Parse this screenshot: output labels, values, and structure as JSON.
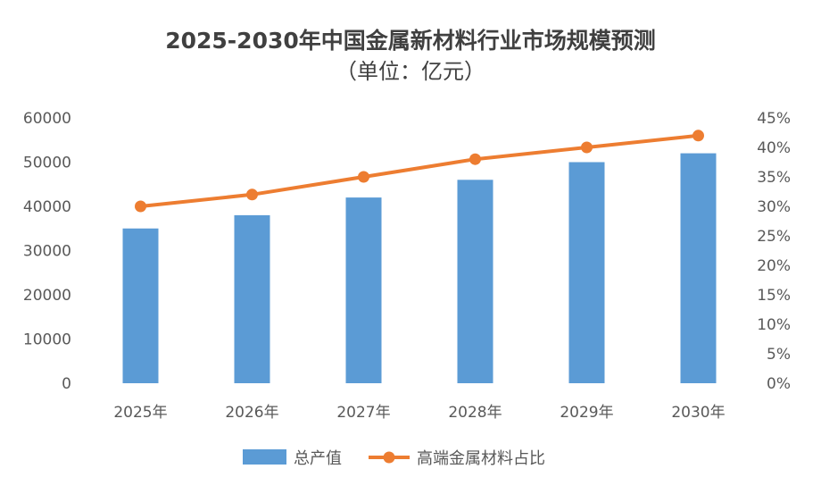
{
  "chart_data": {
    "type": "bar",
    "title_line1": "2025-2030年中国金属新材料行业市场规模预测",
    "title_line2": "（单位：亿元）",
    "categories": [
      "2025年",
      "2026年",
      "2027年",
      "2028年",
      "2029年",
      "2030年"
    ],
    "series": [
      {
        "name": "总产值",
        "type": "bar",
        "axis": "left",
        "color": "#5B9BD5",
        "values": [
          35000,
          38000,
          42000,
          46000,
          50000,
          52000
        ]
      },
      {
        "name": "高端金属材料占比",
        "type": "line",
        "axis": "right",
        "color": "#ED7D31",
        "values": [
          30,
          32,
          35,
          38,
          40,
          42
        ]
      }
    ],
    "y_left": {
      "min": 0,
      "max": 60000,
      "step": 10000,
      "ticks": [
        "0",
        "10000",
        "20000",
        "30000",
        "40000",
        "50000",
        "60000"
      ]
    },
    "y_right": {
      "min": 0,
      "max": 45,
      "step": 5,
      "unit": "%",
      "ticks": [
        "0%",
        "5%",
        "10%",
        "15%",
        "20%",
        "25%",
        "30%",
        "35%",
        "40%",
        "45%"
      ]
    },
    "grid": false,
    "legend_position": "bottom"
  }
}
